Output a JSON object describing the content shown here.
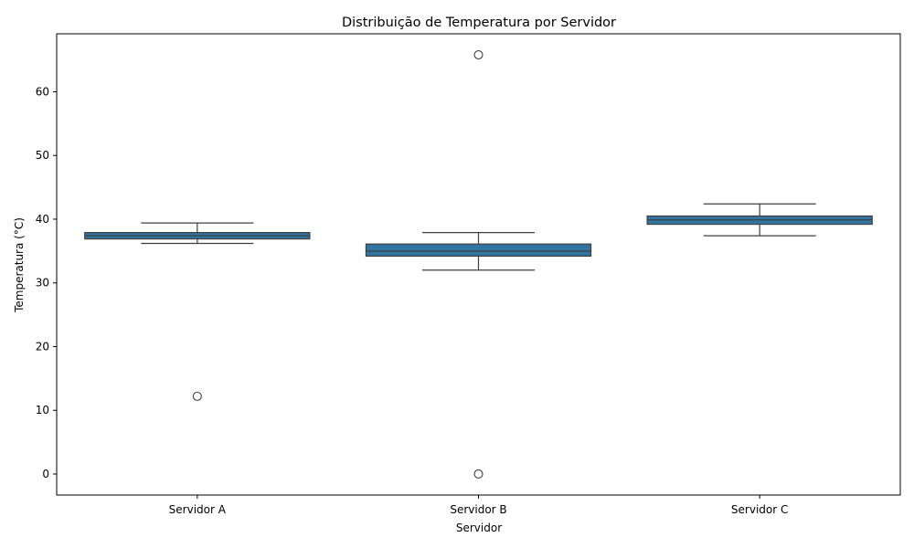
{
  "chart_data": {
    "type": "boxplot",
    "title": "Distribuição de Temperatura por Servidor",
    "xlabel": "Servidor",
    "ylabel": "Temperatura (°C)",
    "categories": [
      "Servidor A",
      "Servidor B",
      "Servidor C"
    ],
    "ylim": [
      -3.3,
      69.1
    ],
    "yticks": [
      0,
      10,
      20,
      30,
      40,
      50,
      60
    ],
    "grid": false,
    "box_color": "#3274a1",
    "edge_color": "#3f3f3f",
    "boxes": [
      {
        "category": "Servidor A",
        "whisker_low": 36.2,
        "q1": 36.9,
        "median": 37.4,
        "q3": 37.9,
        "whisker_high": 39.4,
        "outliers": [
          12.2
        ]
      },
      {
        "category": "Servidor B",
        "whisker_low": 32.0,
        "q1": 34.2,
        "median": 35.0,
        "q3": 36.1,
        "whisker_high": 37.9,
        "outliers": [
          65.8,
          0.0
        ]
      },
      {
        "category": "Servidor C",
        "whisker_low": 37.4,
        "q1": 39.2,
        "median": 39.9,
        "q3": 40.5,
        "whisker_high": 42.4,
        "outliers": []
      }
    ]
  }
}
